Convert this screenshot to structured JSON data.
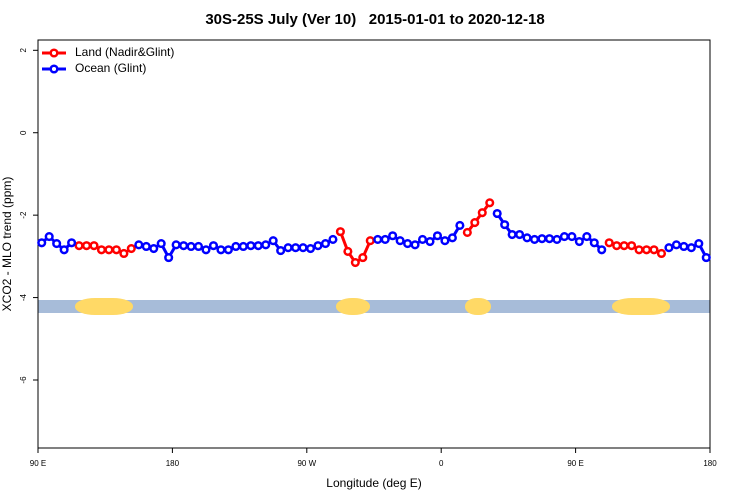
{
  "chart_data": {
    "type": "line",
    "title": "30S-25S July (Ver 10)   2015-01-01 to 2020-12-18",
    "x_label": "Longitude (deg E)",
    "y_label": "XCO2 - MLO trend (ppm)",
    "x": [
      92.5,
      97.5,
      102.5,
      107.5,
      112.5,
      117.5,
      122.5,
      127.5,
      132.5,
      137.5,
      142.5,
      147.5,
      152.5,
      157.5,
      162.5,
      167.5,
      172.5,
      177.5,
      182.5,
      187.5,
      192.5,
      197.5,
      202.5,
      207.5,
      212.5,
      217.5,
      222.5,
      227.5,
      232.5,
      237.5,
      242.5,
      247.5,
      252.5,
      257.5,
      262.5,
      267.5,
      272.5,
      277.5,
      282.5,
      287.5,
      292.5,
      297.5,
      302.5,
      307.5,
      312.5,
      317.5,
      322.5,
      327.5,
      332.5,
      337.5,
      342.5,
      347.5,
      352.5,
      357.5,
      362.5,
      367.5,
      372.5,
      377.5,
      382.5,
      387.5,
      392.5,
      397.5,
      402.5,
      407.5,
      412.5,
      417.5,
      422.5,
      427.5,
      432.5,
      437.5,
      442.5,
      447.5,
      452.5,
      457.5,
      462.5,
      467.5,
      472.5,
      477.5,
      482.5,
      487.5,
      492.5,
      497.5,
      502.5,
      507.5,
      512.5,
      517.5,
      522.5,
      527.5,
      532.5,
      537.5
    ],
    "series": [
      {
        "name": "Land (Nadir&Glint)",
        "color": "#ff0000",
        "values": [
          null,
          null,
          null,
          null,
          null,
          -2.74,
          -2.74,
          -2.74,
          -2.84,
          -2.84,
          -2.84,
          -2.93,
          -2.81,
          null,
          null,
          null,
          null,
          null,
          null,
          null,
          null,
          null,
          null,
          null,
          null,
          null,
          null,
          null,
          null,
          null,
          null,
          null,
          null,
          null,
          null,
          null,
          null,
          null,
          null,
          null,
          -2.4,
          -2.88,
          -3.15,
          -3.03,
          -2.62,
          null,
          null,
          null,
          null,
          null,
          null,
          null,
          null,
          null,
          null,
          null,
          null,
          -2.42,
          -2.18,
          -1.94,
          -1.7,
          null,
          null,
          null,
          null,
          null,
          null,
          null,
          null,
          null,
          null,
          null,
          null,
          null,
          null,
          null,
          -2.67,
          -2.74,
          -2.74,
          -2.74,
          -2.84,
          -2.84,
          -2.84,
          -2.93,
          null,
          null,
          null,
          null,
          null,
          null
        ]
      },
      {
        "name": "Ocean (Glint)",
        "color": "#0000ff",
        "values": [
          -2.67,
          -2.52,
          -2.69,
          -2.84,
          -2.67,
          null,
          null,
          null,
          null,
          null,
          null,
          null,
          null,
          -2.72,
          -2.76,
          -2.81,
          -2.69,
          -3.03,
          -2.72,
          -2.74,
          -2.76,
          -2.76,
          -2.84,
          -2.74,
          -2.84,
          -2.84,
          -2.76,
          -2.76,
          -2.74,
          -2.74,
          -2.72,
          -2.62,
          -2.86,
          -2.79,
          -2.79,
          -2.79,
          -2.81,
          -2.74,
          -2.69,
          -2.59,
          null,
          null,
          null,
          null,
          null,
          -2.59,
          -2.59,
          -2.5,
          -2.62,
          -2.69,
          -2.72,
          -2.59,
          -2.64,
          -2.5,
          -2.62,
          -2.55,
          -2.25,
          null,
          null,
          null,
          null,
          -1.96,
          -2.23,
          -2.47,
          -2.47,
          -2.55,
          -2.59,
          -2.57,
          -2.57,
          -2.59,
          -2.52,
          -2.52,
          -2.64,
          -2.52,
          -2.67,
          -2.84,
          null,
          null,
          null,
          null,
          null,
          null,
          null,
          null,
          -2.79,
          -2.72,
          -2.76,
          -2.79,
          -2.69,
          -3.03
        ]
      }
    ],
    "xlim": [
      90,
      540
    ],
    "xticks": [
      {
        "value": 90,
        "label": "90 E"
      },
      180,
      {
        "value": 270,
        "label": "90 W"
      },
      {
        "value": 360,
        "label": "0"
      },
      {
        "value": 450,
        "label": "90 E"
      },
      {
        "value": 540,
        "label": "180"
      }
    ],
    "ylim": [
      -7.65,
      2.25
    ],
    "yticks": [
      2,
      0,
      -2,
      -4,
      -6
    ],
    "legend": "top-left"
  }
}
